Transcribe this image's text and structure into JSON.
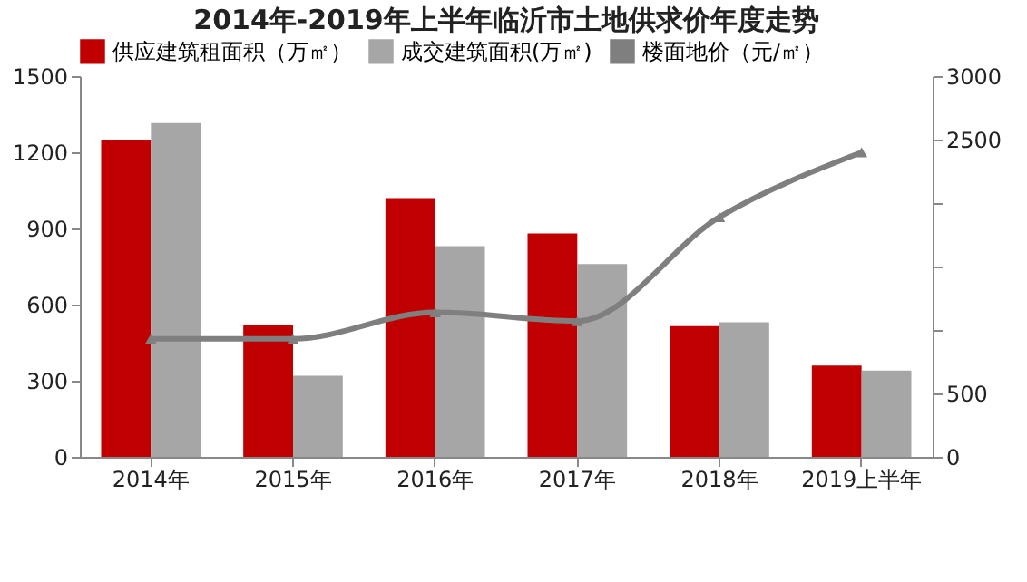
{
  "chart_data": {
    "type": "bar",
    "title": "2014年-2019年上半年临沂市土地供求价年度走势",
    "categories": [
      "2014年",
      "2015年",
      "2016年",
      "2017年",
      "2018年",
      "2019上半年"
    ],
    "series": [
      {
        "name": "供应建筑租面积（万㎡）",
        "color": "#c00000",
        "values": [
          1250,
          520,
          1020,
          880,
          515,
          360
        ]
      },
      {
        "name": "成交建筑面积(万㎡)",
        "color": "#a6a6a6",
        "values": [
          1315,
          320,
          830,
          760,
          530,
          340
        ]
      },
      {
        "name": "楼面地价（元/㎡）",
        "type": "line",
        "axis": "y2",
        "color": "#7f7f7f",
        "marker": "triangle",
        "values": [
          930,
          930,
          1140,
          1070,
          1890,
          2400
        ]
      }
    ],
    "ylim": [
      0,
      1500
    ],
    "yticks": [
      0,
      300,
      600,
      900,
      1200,
      1500
    ],
    "y2lim": [
      0,
      3000
    ],
    "y2ticks": [
      0,
      500,
      {
        "value": 1000,
        "label": null
      },
      {
        "value": 1500,
        "label": null
      },
      {
        "value": 2000,
        "label": null
      },
      2500,
      3000
    ],
    "grid": false,
    "legend": "top"
  }
}
